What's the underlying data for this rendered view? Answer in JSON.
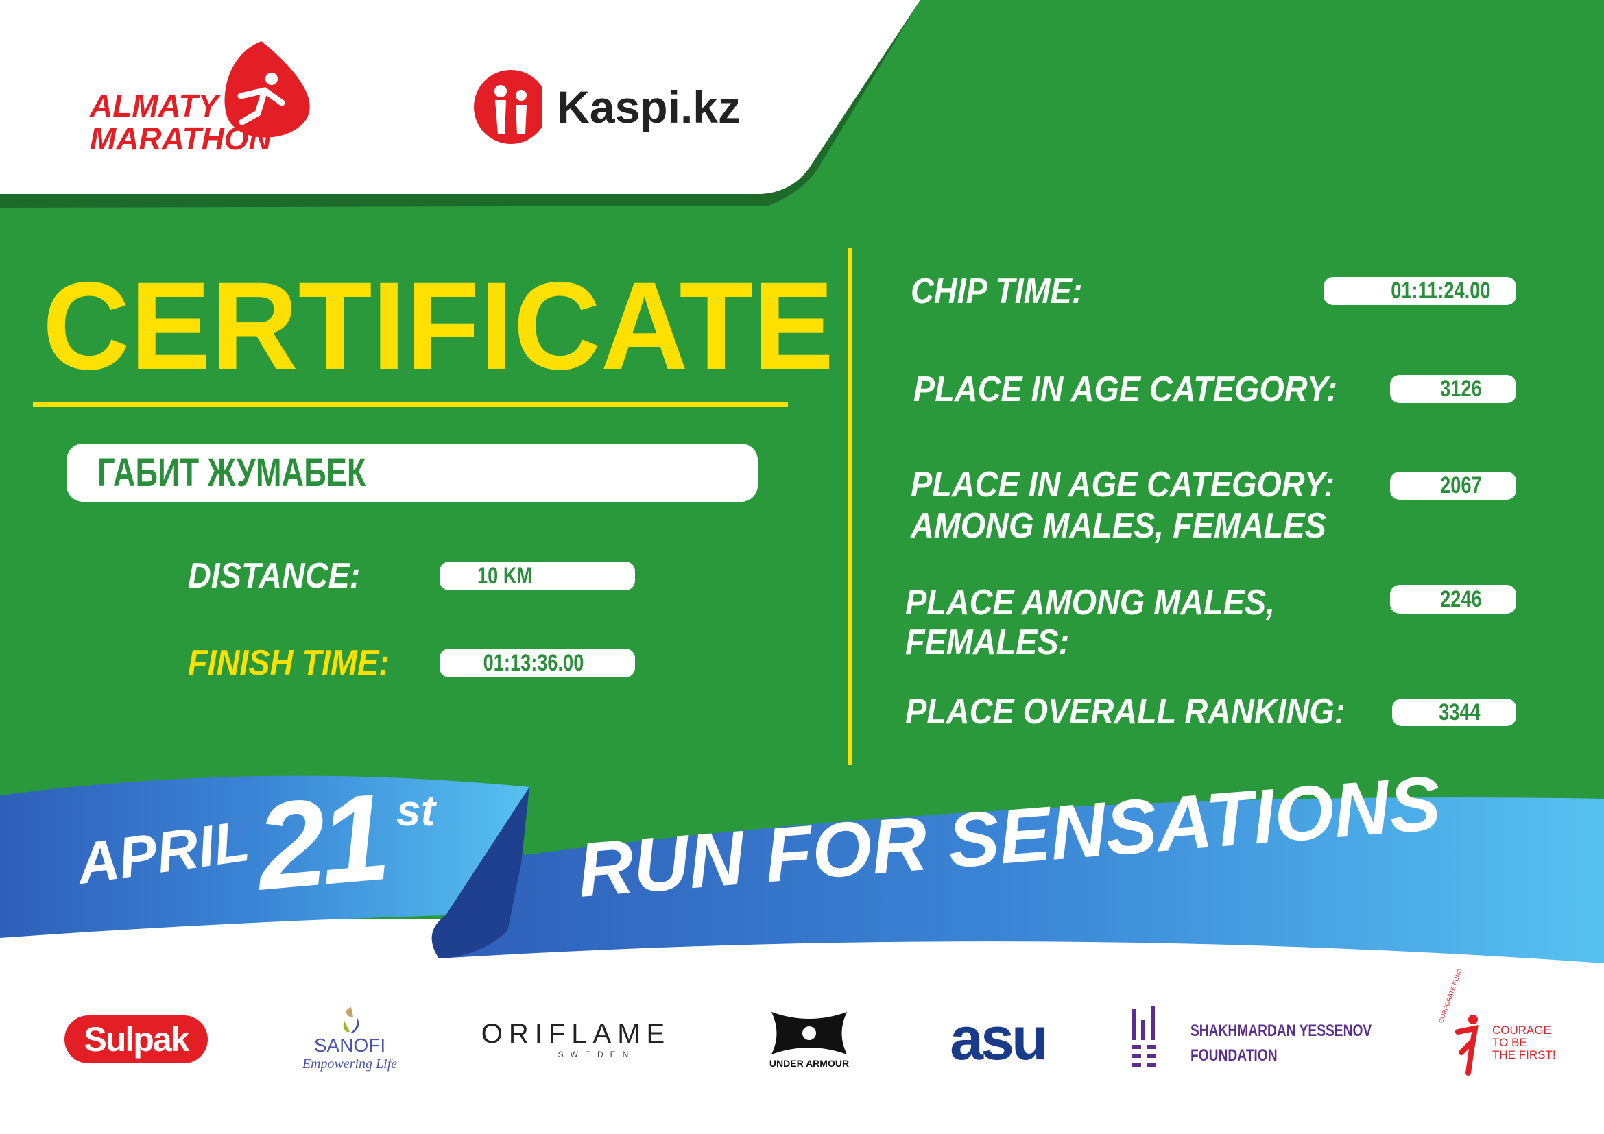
{
  "header": {
    "event_logo": "ALMATY MARATHON",
    "sponsor_logo": "Kaspi.kz"
  },
  "title": "CERTIFICATE",
  "participant": {
    "name": "ГАБИТ ЖУМАБЕК"
  },
  "left_fields": [
    {
      "label": "DISTANCE:",
      "value": "10 KM"
    },
    {
      "label": "FINISH TIME:",
      "value": "01:13:36.00"
    }
  ],
  "right_fields": [
    {
      "label": "CHIP TIME:",
      "value": "01:11:24.00"
    },
    {
      "label": "PLACE IN AGE CATEGORY:",
      "value": "3126"
    },
    {
      "label_line1": "PLACE IN AGE CATEGORY:",
      "label_line2": "AMONG MALES, FEMALES",
      "value": "2067"
    },
    {
      "label_line1": "PLACE AMONG MALES,",
      "label_line2": "FEMALES:",
      "value": "2246"
    },
    {
      "label": "PLACE OVERALL RANKING:",
      "value": "3344"
    }
  ],
  "ribbon": {
    "month": "APRIL",
    "day": "21",
    "suffix": "st",
    "slogan": "RUN FOR SENSATIONS"
  },
  "partners": [
    {
      "name": "Sulpak"
    },
    {
      "name": "SANOFI",
      "tagline": "Empowering Life"
    },
    {
      "name": "ORIFLAME",
      "tagline": "SWEDEN"
    },
    {
      "name": "UNDER ARMOUR"
    },
    {
      "name": "asu"
    },
    {
      "name_line1": "SHAKHMARDAN YESSENOV",
      "name_line2": "FOUNDATION"
    },
    {
      "name_line1": "COURAGE",
      "name_line2": "TO BE",
      "name_line3": "THE FIRST!",
      "arc": "CORPORATE FUND"
    }
  ],
  "colors": {
    "green": "#2a993b",
    "dark_green": "#1e6a2b",
    "yellow": "#ffe000",
    "red": "#e31e24",
    "blue": "#3a7fd0"
  }
}
